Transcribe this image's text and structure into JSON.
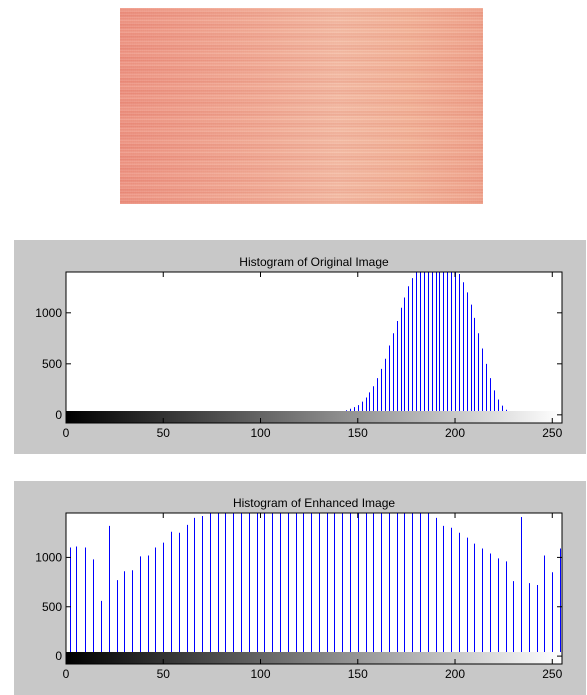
{
  "image": {
    "icon": "fabric-texture-photo"
  },
  "chart_data": [
    {
      "type": "bar",
      "title": "Histogram of Original Image",
      "xlabel": "",
      "ylabel": "",
      "xlim": [
        0,
        255
      ],
      "ylim": [
        -80,
        1400
      ],
      "xticks": [
        0,
        50,
        100,
        150,
        200,
        250
      ],
      "yticks": [
        0,
        500,
        1000
      ],
      "bar_color": "#0000ff",
      "x": [
        130,
        132,
        134,
        136,
        138,
        140,
        142,
        144,
        146,
        148,
        150,
        152,
        154,
        156,
        158,
        160,
        162,
        164,
        166,
        168,
        170,
        172,
        174,
        176,
        178,
        180,
        182,
        184,
        186,
        188,
        190,
        192,
        194,
        196,
        198,
        200,
        202,
        204,
        206,
        208,
        210,
        212,
        214,
        216,
        218,
        220,
        222,
        224,
        226,
        228,
        230,
        232
      ],
      "values": [
        3,
        5,
        8,
        12,
        18,
        25,
        35,
        45,
        60,
        75,
        95,
        130,
        170,
        220,
        280,
        360,
        450,
        550,
        680,
        800,
        920,
        1050,
        1150,
        1260,
        1340,
        1400,
        1400,
        1400,
        1400,
        1400,
        1400,
        1400,
        1400,
        1400,
        1400,
        1400,
        1380,
        1300,
        1200,
        1080,
        950,
        800,
        650,
        500,
        360,
        240,
        150,
        90,
        50,
        25,
        12,
        5
      ]
    },
    {
      "type": "bar",
      "title": "Histogram of Enhanced Image",
      "xlabel": "",
      "ylabel": "",
      "xlim": [
        0,
        255
      ],
      "ylim": [
        -80,
        1450
      ],
      "xticks": [
        0,
        50,
        100,
        150,
        200,
        250
      ],
      "yticks": [
        0,
        500,
        1000
      ],
      "bar_color": "#0000ff",
      "x": [
        2,
        5,
        10,
        14,
        18,
        22,
        26,
        30,
        34,
        38,
        42,
        46,
        50,
        54,
        58,
        62,
        66,
        70,
        74,
        78,
        82,
        86,
        90,
        94,
        98,
        102,
        106,
        110,
        114,
        118,
        122,
        126,
        130,
        134,
        138,
        142,
        146,
        150,
        154,
        158,
        162,
        166,
        170,
        174,
        178,
        182,
        186,
        190,
        194,
        198,
        202,
        206,
        210,
        214,
        218,
        222,
        226,
        230,
        234,
        238,
        242,
        246,
        250,
        254
      ],
      "values": [
        1100,
        1110,
        1100,
        980,
        560,
        1320,
        770,
        860,
        870,
        1010,
        1020,
        1100,
        1150,
        1260,
        1250,
        1330,
        1400,
        1420,
        1450,
        1450,
        1450,
        1450,
        1450,
        1450,
        1450,
        1450,
        1450,
        1450,
        1450,
        1450,
        1450,
        1450,
        1450,
        1450,
        1450,
        1450,
        1450,
        1450,
        1450,
        1450,
        1450,
        1450,
        1450,
        1450,
        1450,
        1450,
        1450,
        1400,
        1320,
        1300,
        1250,
        1200,
        1140,
        1090,
        1040,
        990,
        960,
        760,
        1410,
        740,
        720,
        1020,
        850,
        1090
      ]
    }
  ]
}
